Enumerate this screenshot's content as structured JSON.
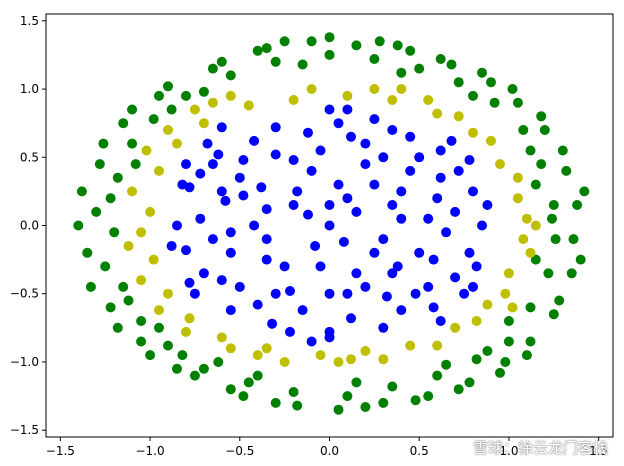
{
  "chart_data": {
    "type": "scatter",
    "title": "",
    "xlabel": "",
    "ylabel": "",
    "xlim": [
      -1.58,
      1.58
    ],
    "ylim": [
      -1.55,
      1.55
    ],
    "xticks": [
      -1.5,
      -1.0,
      -0.5,
      0.0,
      0.5,
      1.0,
      1.5
    ],
    "yticks": [
      -1.5,
      -1.0,
      -0.5,
      0.0,
      0.5,
      1.0,
      1.5
    ],
    "xtick_labels": [
      "−1.5",
      "−1.0",
      "−0.5",
      "0.0",
      "0.5",
      "1.0",
      "1.5"
    ],
    "ytick_labels": [
      "−1.5",
      "−1.0",
      "−0.5",
      "0.0",
      "0.5",
      "1.0",
      "1.5"
    ],
    "grid": false,
    "legend": "none",
    "series": [
      {
        "color": "#008000",
        "points": [
          [
            -1.2,
            -0.05
          ],
          [
            -1.18,
            0.35
          ],
          [
            -1.15,
            -0.45
          ],
          [
            -1.1,
            0.6
          ],
          [
            -1.05,
            -0.7
          ],
          [
            -0.98,
            0.78
          ],
          [
            -0.9,
            -0.88
          ],
          [
            -0.8,
            0.95
          ],
          [
            -0.7,
            -1.05
          ],
          [
            -0.55,
            1.1
          ],
          [
            -0.45,
            -1.15
          ],
          [
            -0.3,
            1.2
          ],
          [
            -0.2,
            -1.22
          ],
          [
            0.0,
            1.25
          ],
          [
            0.1,
            -1.25
          ],
          [
            0.25,
            1.22
          ],
          [
            0.35,
            -1.18
          ],
          [
            0.5,
            1.15
          ],
          [
            0.6,
            -1.1
          ],
          [
            0.72,
            1.05
          ],
          [
            0.82,
            -0.98
          ],
          [
            0.92,
            0.9
          ],
          [
            1.0,
            -0.85
          ],
          [
            1.08,
            0.7
          ],
          [
            1.12,
            -0.6
          ],
          [
            1.18,
            0.45
          ],
          [
            1.22,
            -0.35
          ],
          [
            1.25,
            0.15
          ],
          [
            1.26,
            -0.1
          ],
          [
            1.24,
            0.05
          ],
          [
            -1.3,
            0.1
          ],
          [
            -1.35,
            -0.2
          ],
          [
            -1.28,
            0.45
          ],
          [
            -1.22,
            -0.6
          ],
          [
            -1.15,
            0.75
          ],
          [
            -1.05,
            -0.85
          ],
          [
            -0.95,
            0.95
          ],
          [
            -0.85,
            -1.05
          ],
          [
            -0.65,
            1.15
          ],
          [
            -0.55,
            -1.2
          ],
          [
            -0.4,
            1.28
          ],
          [
            -0.3,
            -1.3
          ],
          [
            -0.1,
            1.35
          ],
          [
            0.05,
            -1.35
          ],
          [
            0.15,
            1.32
          ],
          [
            0.3,
            -1.3
          ],
          [
            0.45,
            1.28
          ],
          [
            0.55,
            -1.25
          ],
          [
            0.68,
            1.18
          ],
          [
            0.78,
            -1.15
          ],
          [
            0.9,
            1.05
          ],
          [
            0.98,
            -1.0
          ],
          [
            1.05,
            0.9
          ],
          [
            1.12,
            -0.85
          ],
          [
            1.2,
            0.7
          ],
          [
            1.25,
            -0.65
          ],
          [
            1.32,
            0.4
          ],
          [
            1.35,
            -0.35
          ],
          [
            1.38,
            0.15
          ],
          [
            1.36,
            -0.1
          ],
          [
            -1.4,
            0.0
          ],
          [
            -1.38,
            0.25
          ],
          [
            -1.33,
            -0.45
          ],
          [
            -1.26,
            0.6
          ],
          [
            -1.18,
            -0.75
          ],
          [
            -1.1,
            0.85
          ],
          [
            -1.0,
            -0.95
          ],
          [
            -0.9,
            1.02
          ],
          [
            -0.75,
            -1.1
          ],
          [
            -0.6,
            1.2
          ],
          [
            -0.48,
            -1.25
          ],
          [
            -0.35,
            1.3
          ],
          [
            -0.18,
            -1.32
          ],
          [
            0.0,
            1.38
          ],
          [
            0.2,
            -1.33
          ],
          [
            0.38,
            1.32
          ],
          [
            0.48,
            -1.28
          ],
          [
            0.62,
            1.22
          ],
          [
            0.72,
            -1.2
          ],
          [
            0.85,
            1.12
          ],
          [
            0.95,
            -1.08
          ],
          [
            1.02,
            1.0
          ],
          [
            1.1,
            -0.95
          ],
          [
            1.18,
            0.8
          ],
          [
            1.28,
            -0.55
          ],
          [
            1.3,
            0.55
          ],
          [
            1.4,
            -0.25
          ],
          [
            1.42,
            0.25
          ],
          [
            -1.25,
            -0.3
          ],
          [
            -1.12,
            -0.55
          ],
          [
            -1.08,
            0.45
          ],
          [
            -0.95,
            -0.75
          ],
          [
            -0.88,
            0.85
          ],
          [
            -0.7,
            0.98
          ],
          [
            -0.62,
            -1.0
          ],
          [
            -0.4,
            -1.1
          ],
          [
            -0.15,
            1.18
          ],
          [
            0.15,
            -1.15
          ],
          [
            0.4,
            1.12
          ],
          [
            0.65,
            -1.02
          ],
          [
            0.8,
            0.95
          ],
          [
            1.0,
            -0.7
          ],
          [
            1.12,
            0.55
          ],
          [
            1.15,
            -0.25
          ],
          [
            1.15,
            0.3
          ],
          [
            -1.22,
            0.2
          ],
          [
            -0.82,
            -0.95
          ],
          [
            0.88,
            -0.92
          ],
          [
            -0.25,
            1.35
          ],
          [
            0.28,
            1.35
          ]
        ]
      },
      {
        "color": "#bfbf00",
        "points": [
          [
            -1.0,
            0.1
          ],
          [
            -0.98,
            -0.25
          ],
          [
            -0.95,
            0.4
          ],
          [
            -0.9,
            -0.5
          ],
          [
            -0.85,
            0.6
          ],
          [
            -0.78,
            -0.68
          ],
          [
            -0.7,
            0.75
          ],
          [
            -0.6,
            -0.82
          ],
          [
            -0.45,
            0.88
          ],
          [
            -0.35,
            -0.9
          ],
          [
            -0.2,
            0.92
          ],
          [
            -0.05,
            -0.95
          ],
          [
            0.1,
            0.95
          ],
          [
            0.2,
            -0.92
          ],
          [
            0.35,
            0.92
          ],
          [
            0.45,
            -0.88
          ],
          [
            0.6,
            0.82
          ],
          [
            0.7,
            -0.75
          ],
          [
            0.8,
            0.68
          ],
          [
            0.88,
            -0.58
          ],
          [
            0.95,
            0.45
          ],
          [
            1.0,
            -0.35
          ],
          [
            1.05,
            0.2
          ],
          [
            1.08,
            -0.1
          ],
          [
            1.1,
            0.05
          ],
          [
            -1.05,
            -0.05
          ],
          [
            -1.1,
            0.25
          ],
          [
            -1.05,
            -0.4
          ],
          [
            -1.02,
            0.55
          ],
          [
            -0.95,
            -0.62
          ],
          [
            -0.9,
            0.7
          ],
          [
            -0.8,
            -0.78
          ],
          [
            -0.75,
            0.85
          ],
          [
            -0.55,
            -0.9
          ],
          [
            -0.55,
            0.95
          ],
          [
            -0.25,
            -1.0
          ],
          [
            -0.1,
            1.0
          ],
          [
            0.05,
            -1.0
          ],
          [
            0.25,
            1.0
          ],
          [
            0.3,
            -0.98
          ],
          [
            0.55,
            0.92
          ],
          [
            0.6,
            -0.88
          ],
          [
            0.72,
            0.8
          ],
          [
            0.82,
            -0.7
          ],
          [
            0.9,
            0.62
          ],
          [
            0.98,
            -0.5
          ],
          [
            1.05,
            0.35
          ],
          [
            1.12,
            -0.2
          ],
          [
            1.15,
            0.0
          ],
          [
            -0.65,
            0.9
          ],
          [
            0.4,
            1.0
          ],
          [
            -0.4,
            -0.95
          ],
          [
            1.02,
            -0.6
          ],
          [
            -1.12,
            -0.15
          ],
          [
            0.12,
            -0.98
          ]
        ]
      },
      {
        "color": "#0000ff",
        "points": [
          [
            0.0,
            0.0
          ],
          [
            0.1,
            0.2
          ],
          [
            -0.2,
            0.15
          ],
          [
            0.3,
            -0.1
          ],
          [
            -0.35,
            -0.25
          ],
          [
            0.45,
            0.4
          ],
          [
            -0.5,
            0.35
          ],
          [
            0.55,
            -0.45
          ],
          [
            -0.6,
            -0.4
          ],
          [
            0.2,
            0.6
          ],
          [
            -0.15,
            -0.62
          ],
          [
            0.7,
            0.1
          ],
          [
            -0.72,
            0.05
          ],
          [
            0.05,
            0.75
          ],
          [
            0.0,
            -0.78
          ],
          [
            0.62,
            0.55
          ],
          [
            -0.62,
            0.52
          ],
          [
            0.58,
            -0.6
          ],
          [
            -0.55,
            -0.62
          ],
          [
            0.35,
            0.7
          ],
          [
            -0.3,
            0.72
          ],
          [
            0.3,
            -0.75
          ],
          [
            -0.32,
            -0.72
          ],
          [
            0.78,
            -0.2
          ],
          [
            -0.8,
            -0.18
          ],
          [
            0.8,
            0.25
          ],
          [
            -0.78,
            0.28
          ],
          [
            0.15,
            -0.35
          ],
          [
            -0.1,
            0.4
          ],
          [
            0.4,
            0.05
          ],
          [
            -0.42,
            0.0
          ],
          [
            0.25,
            0.3
          ],
          [
            -0.25,
            -0.3
          ],
          [
            0.5,
            -0.2
          ],
          [
            -0.48,
            0.22
          ],
          [
            0.1,
            -0.5
          ],
          [
            -0.05,
            0.55
          ],
          [
            0.65,
            -0.05
          ],
          [
            -0.65,
            -0.1
          ],
          [
            0.45,
            0.65
          ],
          [
            -0.42,
            0.62
          ],
          [
            0.4,
            -0.62
          ],
          [
            -0.4,
            -0.58
          ],
          [
            0.72,
            0.4
          ],
          [
            -0.72,
            0.38
          ],
          [
            0.7,
            -0.38
          ],
          [
            -0.7,
            -0.35
          ],
          [
            0.2,
            0.45
          ],
          [
            -0.2,
            0.48
          ],
          [
            0.2,
            -0.45
          ],
          [
            -0.22,
            -0.48
          ],
          [
            0.85,
            0.0
          ],
          [
            -0.85,
            0.0
          ],
          [
            0.0,
            0.85
          ],
          [
            0.0,
            -0.82
          ],
          [
            0.6,
            0.2
          ],
          [
            -0.58,
            0.18
          ],
          [
            0.58,
            -0.25
          ],
          [
            -0.55,
            -0.2
          ],
          [
            0.3,
            0.5
          ],
          [
            -0.3,
            0.52
          ],
          [
            0.32,
            -0.52
          ],
          [
            -0.3,
            -0.5
          ],
          [
            0.15,
            0.1
          ],
          [
            -0.12,
            0.08
          ],
          [
            0.08,
            -0.12
          ],
          [
            -0.08,
            -0.15
          ],
          [
            0.5,
            0.5
          ],
          [
            -0.48,
            0.48
          ],
          [
            0.48,
            -0.5
          ],
          [
            -0.5,
            -0.45
          ],
          [
            0.75,
            -0.5
          ],
          [
            -0.75,
            -0.5
          ],
          [
            0.68,
            0.62
          ],
          [
            -0.68,
            0.6
          ],
          [
            0.1,
            0.85
          ],
          [
            -0.1,
            -0.85
          ],
          [
            0.88,
            0.15
          ],
          [
            -0.88,
            -0.15
          ],
          [
            0.4,
            0.25
          ],
          [
            -0.38,
            0.28
          ],
          [
            0.38,
            -0.3
          ],
          [
            -0.35,
            -0.1
          ],
          [
            0.25,
            -0.2
          ],
          [
            -0.18,
            0.25
          ],
          [
            0.62,
            0.35
          ],
          [
            -0.6,
            0.25
          ],
          [
            0.55,
            0.05
          ],
          [
            -0.55,
            -0.05
          ],
          [
            0.05,
            0.3
          ],
          [
            -0.05,
            -0.3
          ],
          [
            0.82,
            -0.3
          ],
          [
            -0.82,
            0.3
          ],
          [
            0.25,
            0.78
          ],
          [
            -0.22,
            -0.78
          ],
          [
            0.78,
            0.48
          ],
          [
            -0.8,
            0.45
          ],
          [
            0.8,
            -0.45
          ],
          [
            -0.78,
            -0.42
          ],
          [
            0.12,
            0.65
          ],
          [
            -0.12,
            0.68
          ],
          [
            0.12,
            -0.68
          ],
          [
            0.35,
            0.15
          ],
          [
            -0.35,
            0.12
          ],
          [
            0.35,
            -0.35
          ],
          [
            0.62,
            -0.7
          ],
          [
            -0.6,
            0.72
          ],
          [
            0.0,
            0.15
          ],
          [
            0.0,
            -0.5
          ],
          [
            -0.65,
            0.45
          ]
        ]
      }
    ]
  },
  "watermark": "雪球：徐云龙门客栈"
}
